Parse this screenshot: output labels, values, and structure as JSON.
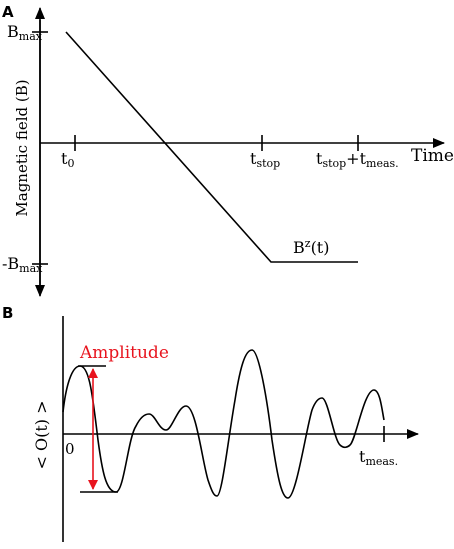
{
  "colors": {
    "ink": "#000000",
    "highlight": "#e8141e"
  },
  "panel_a": {
    "label": "A",
    "y_axis_label": "Magnetic field (B)",
    "x_axis_label": "Time",
    "y_ticks": {
      "max": {
        "base": "B",
        "sub": "max"
      },
      "min": {
        "base": "-B",
        "sub": "max"
      }
    },
    "x_ticks": {
      "t0": {
        "base": "t",
        "sub": "0"
      },
      "tstop": {
        "base": "t",
        "sub": "stop"
      },
      "tend": {
        "base": "t",
        "sub": "stop",
        "mid": "+t",
        "sub2": "meas."
      }
    },
    "curve_label": {
      "base": "B",
      "sup": "z",
      "rest": "(t)"
    }
  },
  "panel_b": {
    "label": "B",
    "y_axis_label": "< O(t) >",
    "origin_label": "0",
    "x_end": {
      "base": "t",
      "sub": "meas."
    },
    "amplitude_label": "Amplitude"
  }
}
